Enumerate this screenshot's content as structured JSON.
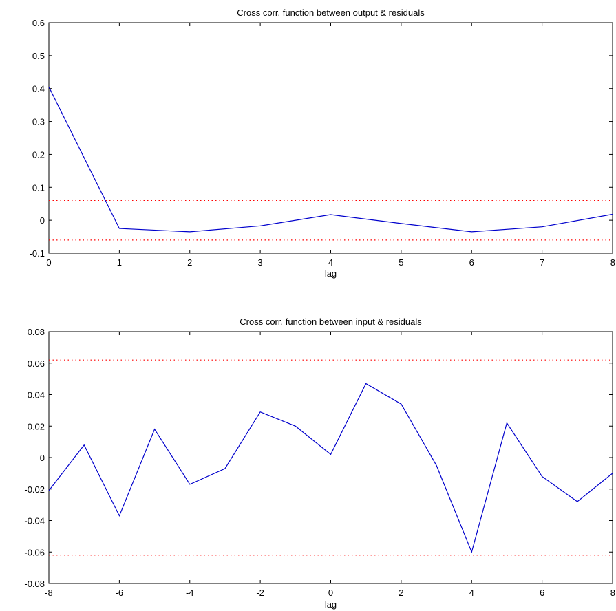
{
  "chart_data": [
    {
      "type": "line",
      "title": "Cross corr. function between output & residuals",
      "xlabel": "lag",
      "ylabel": "",
      "xlim": [
        0,
        8
      ],
      "ylim": [
        -0.1,
        0.6
      ],
      "xticks": [
        0,
        1,
        2,
        3,
        4,
        5,
        6,
        7,
        8
      ],
      "xtick_labels": [
        "0",
        "1",
        "2",
        "3",
        "4",
        "5",
        "6",
        "7",
        "8"
      ],
      "yticks": [
        -0.1,
        0,
        0.1,
        0.2,
        0.3,
        0.4,
        0.5,
        0.6
      ],
      "ytick_labels": [
        "-0.1",
        "0",
        "0.1",
        "0.2",
        "0.3",
        "0.4",
        "0.5",
        "0.6"
      ],
      "grid": false,
      "x": [
        0,
        1,
        2,
        3,
        4,
        5,
        6,
        7,
        8
      ],
      "series": [
        {
          "values": [
            0.405,
            -0.025,
            -0.035,
            -0.017,
            0.017,
            -0.01,
            -0.035,
            -0.02,
            0.018
          ],
          "color": "#0000cc"
        }
      ],
      "confidence_band": {
        "upper": 0.06,
        "lower": -0.06,
        "color": "#ff0000"
      }
    },
    {
      "type": "line",
      "title": "Cross corr. function between input & residuals",
      "xlabel": "lag",
      "ylabel": "",
      "xlim": [
        -8,
        8
      ],
      "ylim": [
        -0.08,
        0.08
      ],
      "xticks": [
        -8,
        -6,
        -4,
        -2,
        0,
        2,
        4,
        6,
        8
      ],
      "xtick_labels": [
        "-8",
        "-6",
        "-4",
        "-2",
        "0",
        "2",
        "4",
        "6",
        "8"
      ],
      "yticks": [
        -0.08,
        -0.06,
        -0.04,
        -0.02,
        0,
        0.02,
        0.04,
        0.06,
        0.08
      ],
      "ytick_labels": [
        "-0.08",
        "-0.06",
        "-0.04",
        "-0.02",
        "0",
        "0.02",
        "0.04",
        "0.06",
        "0.08"
      ],
      "grid": false,
      "x": [
        -8,
        -7,
        -6,
        -5,
        -4,
        -3,
        -2,
        -1,
        0,
        1,
        2,
        3,
        4,
        5,
        6,
        7,
        8
      ],
      "series": [
        {
          "values": [
            -0.021,
            0.008,
            -0.037,
            0.018,
            -0.017,
            -0.007,
            0.029,
            0.02,
            0.002,
            0.047,
            0.034,
            -0.005,
            -0.06,
            0.022,
            -0.012,
            -0.028,
            -0.01
          ],
          "color": "#0000cc"
        }
      ],
      "confidence_band": {
        "upper": 0.062,
        "lower": -0.062,
        "color": "#ff0000"
      }
    }
  ]
}
